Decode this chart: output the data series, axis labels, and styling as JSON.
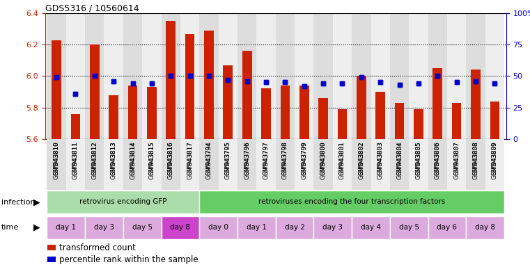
{
  "title": "GDS5316 / 10560614",
  "samples": [
    "GSM943810",
    "GSM943811",
    "GSM943812",
    "GSM943813",
    "GSM943814",
    "GSM943815",
    "GSM943816",
    "GSM943817",
    "GSM943794",
    "GSM943795",
    "GSM943796",
    "GSM943797",
    "GSM943798",
    "GSM943799",
    "GSM943800",
    "GSM943801",
    "GSM943802",
    "GSM943803",
    "GSM943804",
    "GSM943805",
    "GSM943806",
    "GSM943807",
    "GSM943808",
    "GSM943809"
  ],
  "bar_values": [
    6.23,
    5.76,
    6.2,
    5.88,
    5.94,
    5.93,
    6.35,
    6.27,
    6.29,
    6.07,
    6.16,
    5.92,
    5.94,
    5.94,
    5.86,
    5.79,
    6.0,
    5.9,
    5.83,
    5.79,
    6.05,
    5.83,
    6.04,
    5.84
  ],
  "percentile_values": [
    49,
    36,
    50,
    46,
    44,
    44,
    50,
    50,
    50,
    47,
    46,
    45,
    45,
    42,
    44,
    44,
    49,
    45,
    43,
    44,
    50,
    45,
    46,
    44
  ],
  "bar_color": "#cc2200",
  "dot_color": "#0000cc",
  "ylim": [
    5.6,
    6.4
  ],
  "yticks_left": [
    5.6,
    5.8,
    6.0,
    6.2,
    6.4
  ],
  "yticks_right": [
    0,
    25,
    50,
    75,
    100
  ],
  "infection_groups": [
    {
      "label": "retrovirus encoding GFP",
      "start": 0,
      "end": 8,
      "color": "#aaddaa"
    },
    {
      "label": "retroviruses encoding the four transcription factors",
      "start": 8,
      "end": 24,
      "color": "#66cc66"
    }
  ],
  "time_groups": [
    {
      "label": "day 1",
      "start": 0,
      "end": 2,
      "color": "#ddaadd"
    },
    {
      "label": "day 3",
      "start": 2,
      "end": 4,
      "color": "#ddaadd"
    },
    {
      "label": "day 5",
      "start": 4,
      "end": 6,
      "color": "#ddaadd"
    },
    {
      "label": "day 8",
      "start": 6,
      "end": 8,
      "color": "#cc44cc"
    },
    {
      "label": "day 0",
      "start": 8,
      "end": 10,
      "color": "#ddaadd"
    },
    {
      "label": "day 1",
      "start": 10,
      "end": 12,
      "color": "#ddaadd"
    },
    {
      "label": "day 2",
      "start": 12,
      "end": 14,
      "color": "#ddaadd"
    },
    {
      "label": "day 3",
      "start": 14,
      "end": 16,
      "color": "#ddaadd"
    },
    {
      "label": "day 4",
      "start": 16,
      "end": 18,
      "color": "#ddaadd"
    },
    {
      "label": "day 5",
      "start": 18,
      "end": 20,
      "color": "#ddaadd"
    },
    {
      "label": "day 6",
      "start": 20,
      "end": 22,
      "color": "#ddaadd"
    },
    {
      "label": "day 8",
      "start": 22,
      "end": 24,
      "color": "#ddaadd"
    }
  ],
  "legend_items": [
    {
      "label": "transformed count",
      "color": "#cc2200"
    },
    {
      "label": "percentile rank within the sample",
      "color": "#0000cc"
    }
  ],
  "left_axis_color": "#cc2200",
  "right_axis_color": "#0000bb"
}
